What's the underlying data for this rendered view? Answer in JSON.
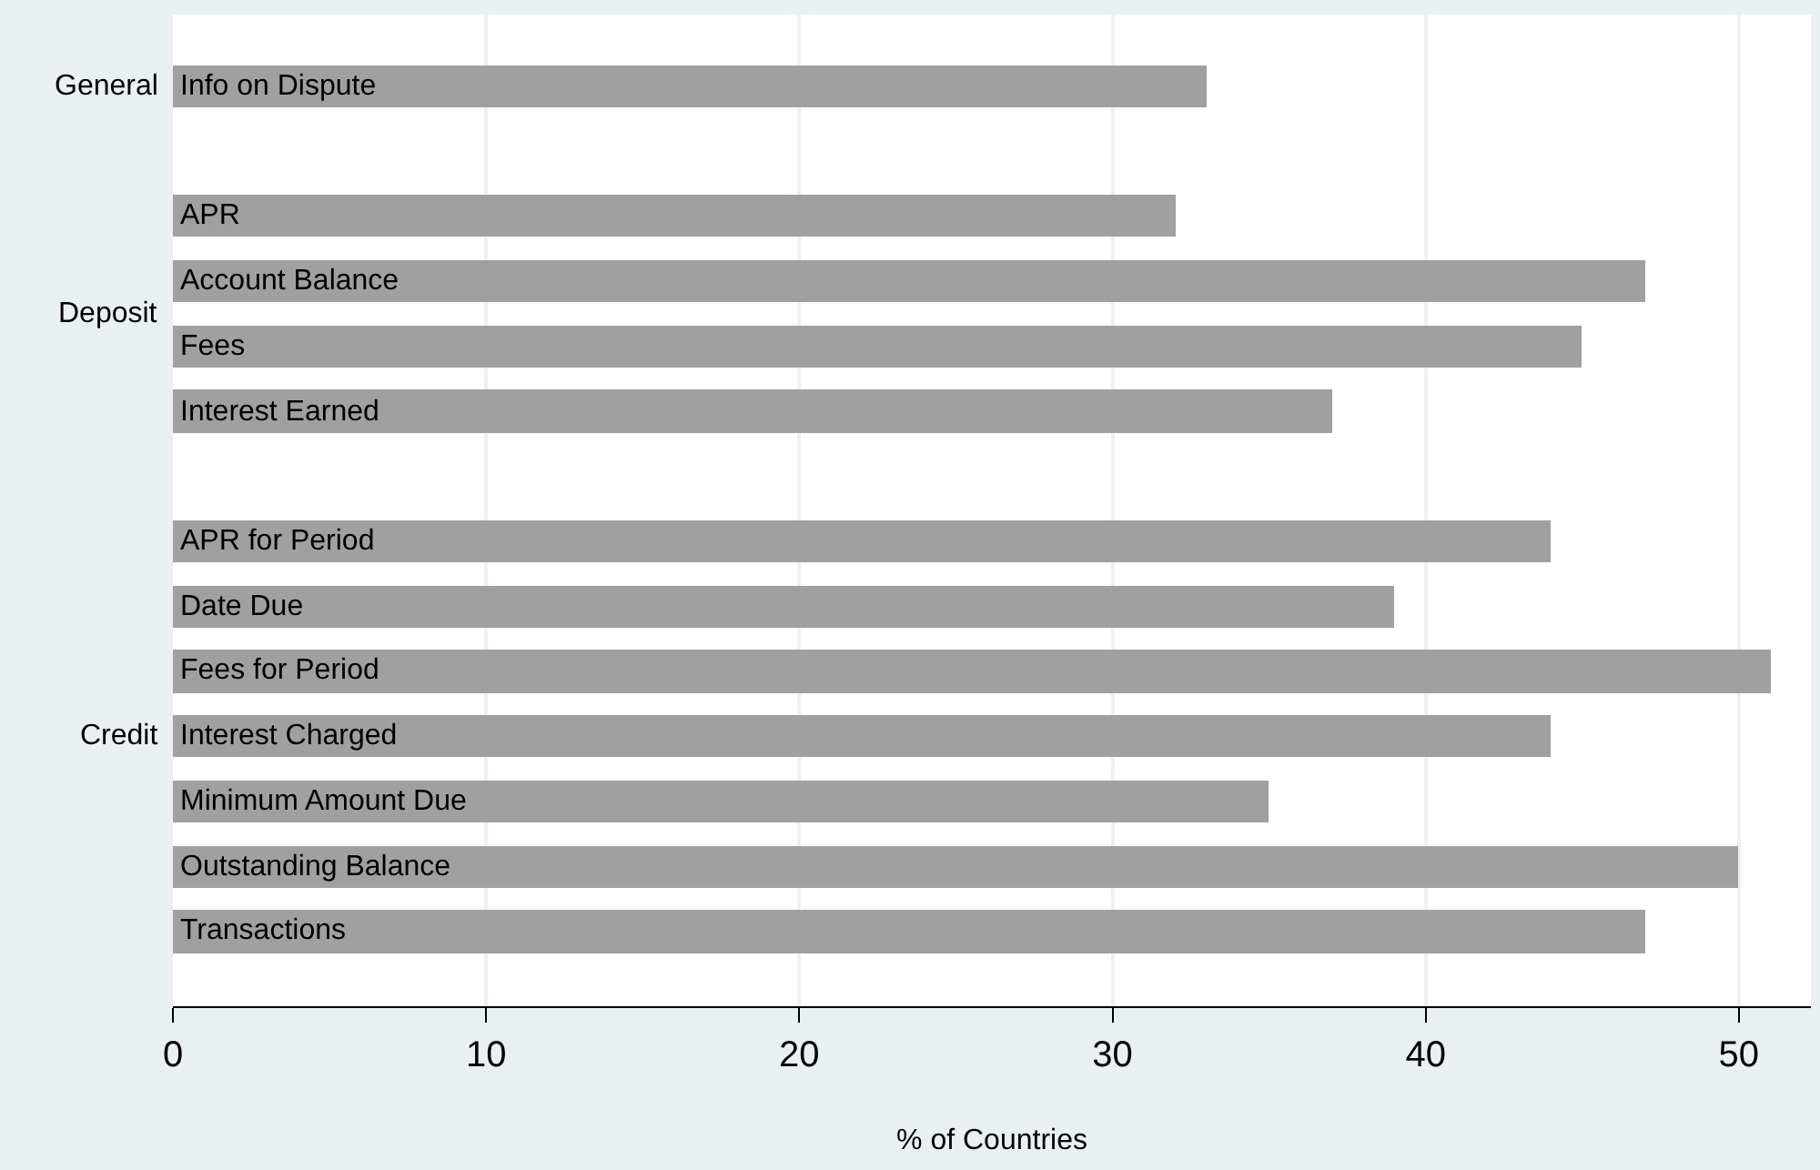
{
  "chart_data": {
    "type": "bar",
    "orientation": "horizontal",
    "xlabel": "% of Countries",
    "categories": [
      "Info on Dispute",
      null,
      "APR",
      "Account Balance",
      "Fees",
      "Interest Earned",
      null,
      "APR for Period",
      "Date Due",
      "Fees for Period",
      "Interest Charged",
      "Minimum Amount Due",
      "Outstanding Balance",
      "Transactions"
    ],
    "values": [
      33,
      null,
      32,
      47,
      45,
      37,
      null,
      44,
      39,
      51,
      44,
      35,
      50,
      47
    ],
    "color": "#a0a0a0",
    "xlim": [
      0,
      52.3
    ],
    "xticks": [
      0,
      10,
      20,
      30,
      40,
      50
    ],
    "grid": "x",
    "legend": false,
    "annotations": [
      "General",
      "Deposit",
      "Credit"
    ]
  }
}
